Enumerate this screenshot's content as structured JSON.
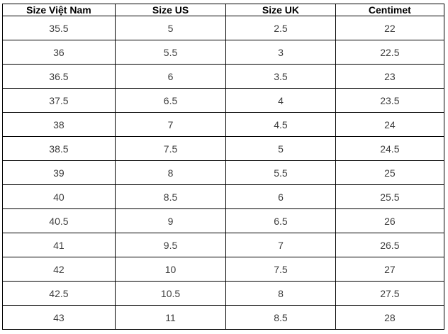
{
  "chart_data": {
    "type": "table",
    "title": "",
    "columns": [
      "Size Việt Nam",
      "Size US",
      "Size UK",
      "Centimet"
    ],
    "rows": [
      [
        "35.5",
        "5",
        "2.5",
        "22"
      ],
      [
        "36",
        "5.5",
        "3",
        "22.5"
      ],
      [
        "36.5",
        "6",
        "3.5",
        "23"
      ],
      [
        "37.5",
        "6.5",
        "4",
        "23.5"
      ],
      [
        "38",
        "7",
        "4.5",
        "24"
      ],
      [
        "38.5",
        "7.5",
        "5",
        "24.5"
      ],
      [
        "39",
        "8",
        "5.5",
        "25"
      ],
      [
        "40",
        "8.5",
        "6",
        "25.5"
      ],
      [
        "40.5",
        "9",
        "6.5",
        "26"
      ],
      [
        "41",
        "9.5",
        "7",
        "26.5"
      ],
      [
        "42",
        "10",
        "7.5",
        "27"
      ],
      [
        "42.5",
        "10.5",
        "8",
        "27.5"
      ],
      [
        "43",
        "11",
        "8.5",
        "28"
      ]
    ],
    "layout": {
      "grid": true,
      "header_bold": true,
      "text_align": "center"
    },
    "colors": {
      "border": "#000000",
      "header_text": "#000000",
      "body_text": "#3c3c3c",
      "background": "#ffffff"
    }
  }
}
